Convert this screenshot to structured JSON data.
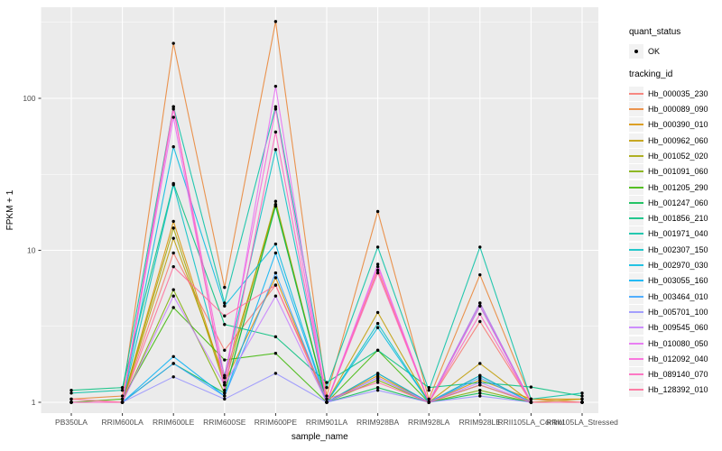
{
  "chart_data": {
    "type": "line",
    "title": "",
    "xlabel": "sample_name",
    "ylabel": "FPKM + 1",
    "y_scale": "log10",
    "y_ticks": [
      1,
      10,
      100
    ],
    "y_minor_ticks": [
      3.162,
      31.62,
      316.2
    ],
    "ylim": [
      0.85,
      400
    ],
    "grid": true,
    "panel_bg": "#EBEBEB",
    "grid_color": "#FFFFFF",
    "point_color": "#000000",
    "axis_text_color": "#4D4D4D",
    "categories": [
      "PB350LA",
      "RRIM600LA",
      "RRIM600LE",
      "RRIM600SE",
      "RRIM600PE",
      "RRIM901LA",
      "RRIM928BA",
      "RRIM928LA",
      "RRIM928LE",
      "RRII105LA_Control",
      "RRII105LA_Stressed"
    ],
    "series": [
      {
        "name": "Hb_000035_230",
        "color": "#F8766D",
        "values": [
          1.0,
          1.0,
          9.6,
          2.2,
          5.9,
          1.0,
          7.4,
          1.0,
          3.4,
          1.0,
          1.0
        ]
      },
      {
        "name": "Hb_000089_090",
        "color": "#EA8331",
        "values": [
          1.05,
          1.1,
          230,
          5.7,
          320,
          1.1,
          18,
          1.05,
          6.9,
          1.05,
          1.0
        ]
      },
      {
        "name": "Hb_000390_010",
        "color": "#D89000",
        "values": [
          1.0,
          1.0,
          15.5,
          1.35,
          6.6,
          1.0,
          1.5,
          1.0,
          1.4,
          1.05,
          1.05
        ]
      },
      {
        "name": "Hb_000962_060",
        "color": "#C09B00",
        "values": [
          1.0,
          1.0,
          12,
          1.45,
          20,
          1.0,
          3.9,
          1.0,
          1.8,
          1.0,
          1.05
        ]
      },
      {
        "name": "Hb_001052_020",
        "color": "#A3A500",
        "values": [
          1.0,
          1.0,
          14,
          1.3,
          21,
          1.0,
          1.55,
          1.0,
          1.5,
          1.0,
          1.0
        ]
      },
      {
        "name": "Hb_001091_060",
        "color": "#7CAE00",
        "values": [
          1.0,
          1.0,
          5.5,
          1.15,
          20,
          1.0,
          1.4,
          1.0,
          1.2,
          1.0,
          1.0
        ]
      },
      {
        "name": "Hb_001205_290",
        "color": "#39B600",
        "values": [
          1.0,
          1.05,
          4.2,
          1.9,
          2.1,
          1.0,
          2.2,
          1.0,
          1.3,
          1.0,
          1.0
        ]
      },
      {
        "name": "Hb_001247_060",
        "color": "#00BB4E",
        "values": [
          1.0,
          1.0,
          1.8,
          1.15,
          19.5,
          1.0,
          1.25,
          1.0,
          1.15,
          1.0,
          1.0
        ]
      },
      {
        "name": "Hb_001856_210",
        "color": "#00BF7D",
        "values": [
          1.2,
          1.25,
          27.5,
          3.25,
          2.7,
          1.35,
          2.2,
          1.25,
          1.35,
          1.26,
          1.1
        ]
      },
      {
        "name": "Hb_001971_040",
        "color": "#00C1A3",
        "values": [
          1.15,
          1.2,
          88,
          4.5,
          88,
          1.25,
          10.5,
          1.2,
          10.5,
          1.05,
          1.15
        ]
      },
      {
        "name": "Hb_002307_150",
        "color": "#00BFC4",
        "values": [
          1.0,
          1.0,
          27,
          1.5,
          46,
          1.0,
          3.3,
          1.0,
          4.5,
          1.0,
          1.0
        ]
      },
      {
        "name": "Hb_002970_030",
        "color": "#00BAE0",
        "values": [
          1.0,
          1.0,
          48,
          4.3,
          11,
          1.0,
          3.1,
          1.0,
          4.3,
          1.0,
          1.0
        ]
      },
      {
        "name": "Hb_003055_160",
        "color": "#00B0F6",
        "values": [
          1.0,
          1.0,
          2.0,
          1.1,
          9.6,
          1.0,
          1.55,
          1.0,
          1.5,
          1.0,
          1.0
        ]
      },
      {
        "name": "Hb_003464_010",
        "color": "#35A2FF",
        "values": [
          1.0,
          1.0,
          1.8,
          1.1,
          7.1,
          1.0,
          1.45,
          1.0,
          1.45,
          1.0,
          1.0
        ]
      },
      {
        "name": "Hb_005701_100",
        "color": "#9590FF",
        "values": [
          1.0,
          1.0,
          1.47,
          1.05,
          1.55,
          1.0,
          1.2,
          1.0,
          1.1,
          1.0,
          1.0
        ]
      },
      {
        "name": "Hb_009545_060",
        "color": "#C77CFF",
        "values": [
          1.0,
          1.0,
          5.0,
          1.3,
          5.0,
          1.0,
          1.45,
          1.0,
          1.35,
          1.0,
          1.0
        ]
      },
      {
        "name": "Hb_010080_050",
        "color": "#E76BF3",
        "values": [
          1.0,
          1.0,
          75,
          1.3,
          120,
          1.0,
          8.1,
          1.0,
          4.5,
          1.0,
          1.0
        ]
      },
      {
        "name": "Hb_012092_040",
        "color": "#FA62DB",
        "values": [
          1.0,
          1.0,
          85,
          1.45,
          85,
          1.0,
          7.8,
          1.0,
          4.3,
          1.0,
          1.0
        ]
      },
      {
        "name": "Hb_089140_070",
        "color": "#FF62BC",
        "values": [
          1.0,
          1.0,
          88,
          1.2,
          60,
          1.0,
          7.1,
          1.0,
          3.8,
          1.0,
          1.0
        ]
      },
      {
        "name": "Hb_128392_010",
        "color": "#FF6A98",
        "values": [
          1.05,
          1.0,
          7.8,
          3.7,
          5.9,
          1.05,
          1.35,
          1.0,
          1.3,
          1.0,
          1.0
        ]
      }
    ],
    "legend": {
      "position": "right",
      "quant_title": "quant_status",
      "quant_ok": "OK",
      "tracking_title": "tracking_id"
    }
  }
}
